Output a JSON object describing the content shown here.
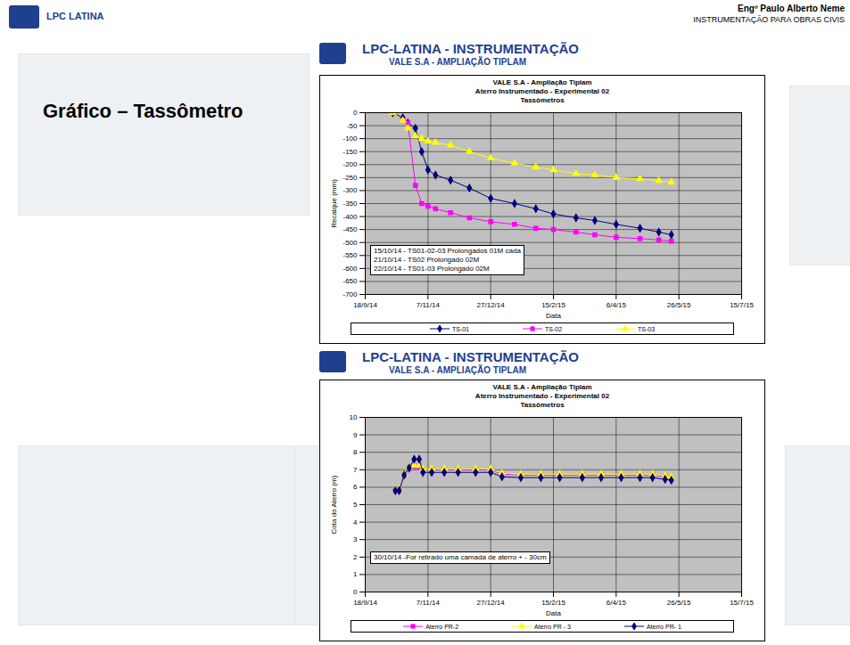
{
  "slide": {
    "logo_text": "LPC LATINA",
    "author": "Engº Paulo Alberto Neme",
    "subtitle": "INSTRUMENTAÇÃO PARA OBRAS CIVIS",
    "heading": "Gráfico – Tassômetro"
  },
  "chart_data": [
    {
      "type": "line",
      "header": [
        "LPC-LATINA - INSTRUMENTAÇÃO",
        "VALE S.A - AMPLIAÇÃO TIPLAM"
      ],
      "title": [
        "VALE S.A - Ampliação Tiplam",
        "Aterro Instrumentado - Experimental 02",
        "Tassômetros"
      ],
      "x_label": "Data",
      "y_label": "Recalque (mm)",
      "annotation": [
        "15/10/14 - TS01-02-03 Prolongados 01M cada",
        "21/10/14 - TS02  Prolongado 02M",
        "22/10/14 - TS01-03  Prolongado 02M"
      ],
      "x": [
        "2014-10-10",
        "2014-10-18",
        "2014-10-22",
        "2014-10-28",
        "2014-11-02",
        "2014-11-07",
        "2014-11-13",
        "2014-11-25",
        "2014-12-10",
        "2014-12-27",
        "2015-01-15",
        "2015-02-01",
        "2015-02-15",
        "2015-03-05",
        "2015-03-20",
        "2015-04-06",
        "2015-04-25",
        "2015-05-10",
        "2015-05-20"
      ],
      "series": [
        {
          "name": "TS-01",
          "color": "#000080",
          "marker": "diamond",
          "values": [
            0,
            -20,
            -40,
            -60,
            -150,
            -220,
            -240,
            -260,
            -290,
            -330,
            -350,
            -370,
            -390,
            -405,
            -415,
            -430,
            -445,
            -460,
            -470
          ]
        },
        {
          "name": "TS-02",
          "color": "#ff00ff",
          "marker": "square",
          "values": [
            0,
            -30,
            -40,
            -280,
            -350,
            -360,
            -370,
            -385,
            -405,
            -420,
            -430,
            -445,
            -450,
            -460,
            -470,
            -480,
            -485,
            -490,
            -495
          ]
        },
        {
          "name": "TS-03",
          "color": "#ffff00",
          "marker": "triangle",
          "values": [
            0,
            -30,
            -60,
            -90,
            -100,
            -110,
            -115,
            -125,
            -150,
            -175,
            -195,
            -210,
            -220,
            -235,
            -240,
            -250,
            -255,
            -262,
            -268
          ]
        }
      ],
      "xlim": [
        "2014-09-18",
        "2015-07-15"
      ],
      "xticks": [
        {
          "value": "2014-09-18",
          "label": "18/9/14"
        },
        {
          "value": "2014-11-07",
          "label": "7/11/14"
        },
        {
          "value": "2014-12-27",
          "label": "27/12/14"
        },
        {
          "value": "2015-02-15",
          "label": "15/2/15"
        },
        {
          "value": "2015-04-06",
          "label": "6/4/15"
        },
        {
          "value": "2015-05-26",
          "label": "26/5/15"
        },
        {
          "value": "2015-07-15",
          "label": "15/7/15"
        }
      ],
      "ylim": [
        -700,
        0
      ],
      "yticks": [
        -700,
        -650,
        -600,
        -550,
        -500,
        -450,
        -400,
        -350,
        -300,
        -250,
        -200,
        -150,
        -100,
        -50,
        0
      ],
      "grid": true,
      "legend": "bottom"
    },
    {
      "type": "line",
      "header": [
        "LPC-LATINA - INSTRUMENTAÇÃO",
        "VALE S.A - AMPLIAÇÃO TIPLAM"
      ],
      "title": [
        "VALE S.A - Ampliação Tiplam",
        "Aterro Instrumentado - Experimental 02",
        "Tassômetros"
      ],
      "x_label": "Data",
      "y_label": "Cota do Aterro (m)",
      "annotation": [
        "30/10/14 -For retirado uma camada de aterro + - 30cm"
      ],
      "x": [
        "2014-10-12",
        "2014-10-15",
        "2014-10-19",
        "2014-10-23",
        "2014-10-27",
        "2014-10-31",
        "2014-11-03",
        "2014-11-10",
        "2014-11-20",
        "2014-12-01",
        "2014-12-15",
        "2014-12-27",
        "2015-01-05",
        "2015-01-20",
        "2015-02-05",
        "2015-02-20",
        "2015-03-10",
        "2015-03-25",
        "2015-04-10",
        "2015-04-25",
        "2015-05-05",
        "2015-05-15",
        "2015-05-20"
      ],
      "series": [
        {
          "name": "Aterro PR-2",
          "color": "#ff00ff",
          "marker": "square",
          "values": [
            5.8,
            5.8,
            6.7,
            7.1,
            7.2,
            7.2,
            7.0,
            7.0,
            7.0,
            7.0,
            7.0,
            7.0,
            6.75,
            6.7,
            6.7,
            6.7,
            6.7,
            6.7,
            6.7,
            6.7,
            6.7,
            6.6,
            6.55
          ]
        },
        {
          "name": "Aterro PR - 3",
          "color": "#ffff00",
          "marker": "triangle",
          "values": [
            5.85,
            5.85,
            6.75,
            7.15,
            7.25,
            7.25,
            7.05,
            7.05,
            7.05,
            7.05,
            7.05,
            7.05,
            6.8,
            6.75,
            6.75,
            6.75,
            6.75,
            6.75,
            6.75,
            6.75,
            6.75,
            6.65,
            6.6
          ]
        },
        {
          "name": "Aterro PR- 1",
          "color": "#000080",
          "marker": "diamond",
          "values": [
            5.8,
            5.8,
            6.7,
            7.1,
            7.6,
            7.6,
            6.85,
            6.85,
            6.85,
            6.85,
            6.85,
            6.85,
            6.6,
            6.55,
            6.55,
            6.55,
            6.55,
            6.55,
            6.55,
            6.55,
            6.55,
            6.45,
            6.4
          ]
        }
      ],
      "xlim": [
        "2014-09-18",
        "2015-07-15"
      ],
      "xticks": [
        {
          "value": "2014-09-18",
          "label": "18/9/14"
        },
        {
          "value": "2014-11-07",
          "label": "7/11/14"
        },
        {
          "value": "2014-12-27",
          "label": "27/12/14"
        },
        {
          "value": "2015-02-15",
          "label": "15/2/15"
        },
        {
          "value": "2015-04-06",
          "label": "6/4/15"
        },
        {
          "value": "2015-05-26",
          "label": "26/5/15"
        },
        {
          "value": "2015-07-15",
          "label": "15/7/15"
        }
      ],
      "ylim": [
        0,
        10
      ],
      "yticks": [
        0,
        1,
        2,
        3,
        4,
        5,
        6,
        7,
        8,
        9,
        10
      ],
      "grid": true,
      "legend": "bottom"
    }
  ]
}
